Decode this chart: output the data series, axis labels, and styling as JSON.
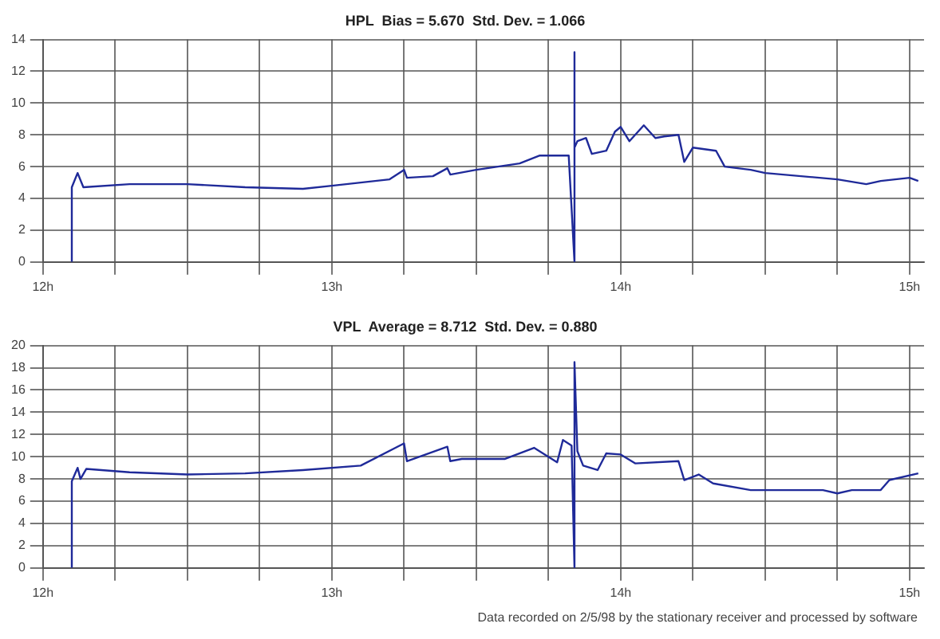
{
  "chart_data": [
    {
      "type": "line",
      "title": "HPL  Bias = 5.670  Std. Dev. = 1.066",
      "xlim": [
        12,
        15.05
      ],
      "ylim": [
        0,
        14
      ],
      "yticks": [
        0,
        2,
        4,
        6,
        8,
        10,
        12,
        14
      ],
      "xticks": [
        {
          "value": 12,
          "label": "12h"
        },
        {
          "value": 12.25,
          "label": null
        },
        {
          "value": 12.5,
          "label": null
        },
        {
          "value": 12.75,
          "label": null
        },
        {
          "value": 13,
          "label": "13h"
        },
        {
          "value": 13.25,
          "label": null
        },
        {
          "value": 13.5,
          "label": null
        },
        {
          "value": 13.75,
          "label": null
        },
        {
          "value": 14,
          "label": "14h"
        },
        {
          "value": 14.25,
          "label": null
        },
        {
          "value": 14.5,
          "label": null
        },
        {
          "value": 14.75,
          "label": null
        },
        {
          "value": 15,
          "label": "15h"
        }
      ],
      "grid": true,
      "legend": false,
      "marker": "none",
      "line_style": "solid",
      "series": [
        {
          "color": "#1f2a99",
          "x": [
            12.1,
            12.1,
            12.12,
            12.14,
            12.3,
            12.5,
            12.7,
            12.9,
            13.0,
            13.2,
            13.25,
            13.26,
            13.35,
            13.4,
            13.41,
            13.5,
            13.65,
            13.72,
            13.82,
            13.84,
            13.84,
            13.84,
            13.85,
            13.88,
            13.9,
            13.95,
            13.98,
            14.0,
            14.03,
            14.08,
            14.12,
            14.15,
            14.2,
            14.22,
            14.25,
            14.33,
            14.36,
            14.45,
            14.5,
            14.75,
            14.85,
            14.9,
            15.0,
            15.03
          ],
          "values": [
            0,
            4.7,
            5.6,
            4.7,
            4.9,
            4.9,
            4.7,
            4.6,
            4.8,
            5.2,
            5.8,
            5.3,
            5.4,
            5.9,
            5.5,
            5.8,
            6.2,
            6.7,
            6.7,
            0,
            13.2,
            7.2,
            7.6,
            7.8,
            6.8,
            7.0,
            8.2,
            8.5,
            7.6,
            8.6,
            7.8,
            7.9,
            8.0,
            6.3,
            7.2,
            7.0,
            6.0,
            5.8,
            5.6,
            5.2,
            4.9,
            5.1,
            5.3,
            5.1
          ]
        }
      ]
    },
    {
      "type": "line",
      "title": "VPL  Average = 8.712  Std. Dev. = 0.880",
      "xlim": [
        12,
        15.05
      ],
      "ylim": [
        0,
        20
      ],
      "yticks": [
        0,
        2,
        4,
        6,
        8,
        10,
        12,
        14,
        16,
        18,
        20
      ],
      "xticks": [
        {
          "value": 12,
          "label": "12h"
        },
        {
          "value": 12.25,
          "label": null
        },
        {
          "value": 12.5,
          "label": null
        },
        {
          "value": 12.75,
          "label": null
        },
        {
          "value": 13,
          "label": "13h"
        },
        {
          "value": 13.25,
          "label": null
        },
        {
          "value": 13.5,
          "label": null
        },
        {
          "value": 13.75,
          "label": null
        },
        {
          "value": 14,
          "label": "14h"
        },
        {
          "value": 14.25,
          "label": null
        },
        {
          "value": 14.5,
          "label": null
        },
        {
          "value": 14.75,
          "label": null
        },
        {
          "value": 15,
          "label": "15h"
        }
      ],
      "grid": true,
      "legend": false,
      "marker": "none",
      "line_style": "solid",
      "annotations": [
        "Data recorded on 2/5/98 by the stationary receiver and processed by software"
      ],
      "series": [
        {
          "color": "#1f2a99",
          "x": [
            12.1,
            12.1,
            12.12,
            12.13,
            12.15,
            12.3,
            12.5,
            12.7,
            12.9,
            13.1,
            13.25,
            13.26,
            13.4,
            13.41,
            13.45,
            13.6,
            13.7,
            13.78,
            13.8,
            13.83,
            13.84,
            13.84,
            13.85,
            13.87,
            13.92,
            13.95,
            14.0,
            14.05,
            14.2,
            14.22,
            14.27,
            14.32,
            14.45,
            14.7,
            14.75,
            14.8,
            14.9,
            14.93,
            15.03
          ],
          "values": [
            0,
            7.8,
            9.0,
            8.0,
            8.9,
            8.6,
            8.4,
            8.5,
            8.8,
            9.2,
            11.2,
            9.6,
            10.9,
            9.6,
            9.8,
            9.8,
            10.8,
            9.5,
            11.5,
            11.0,
            0,
            18.5,
            10.5,
            9.2,
            8.8,
            10.3,
            10.2,
            9.4,
            9.6,
            7.9,
            8.4,
            7.6,
            7.0,
            7.0,
            6.7,
            7.0,
            7.0,
            7.9,
            8.5
          ]
        }
      ]
    }
  ]
}
